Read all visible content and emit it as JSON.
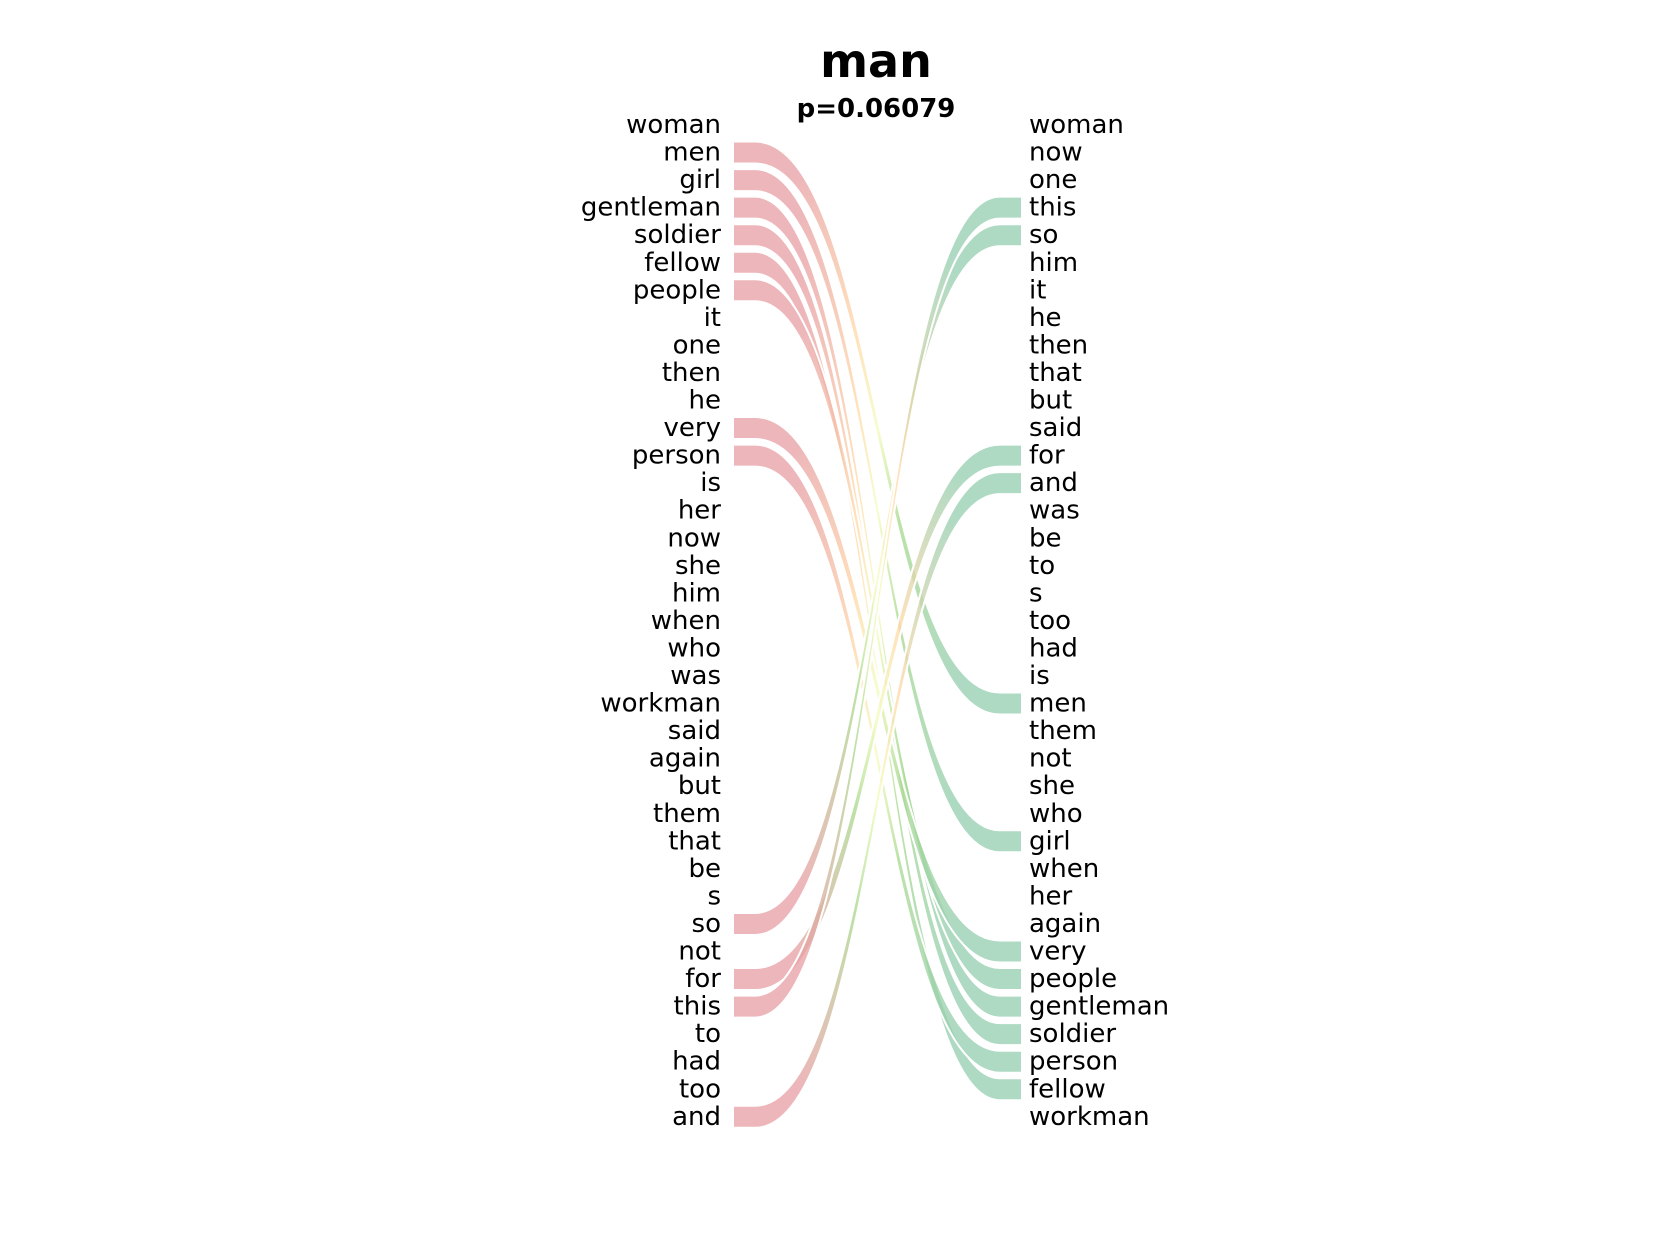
{
  "chart_data": {
    "type": "bump",
    "title": "man",
    "subtitle": "p=0.06079",
    "left_ranking": [
      "woman",
      "men",
      "girl",
      "gentleman",
      "soldier",
      "fellow",
      "people",
      "it",
      "one",
      "then",
      "he",
      "very",
      "person",
      "is",
      "her",
      "now",
      "she",
      "him",
      "when",
      "who",
      "was",
      "workman",
      "said",
      "again",
      "but",
      "them",
      "that",
      "be",
      "s",
      "so",
      "not",
      "for",
      "this",
      "to",
      "had",
      "too",
      "and"
    ],
    "right_ranking": [
      "woman",
      "now",
      "one",
      "this",
      "so",
      "him",
      "it",
      "he",
      "then",
      "that",
      "but",
      "said",
      "for",
      "and",
      "was",
      "be",
      "to",
      "s",
      "too",
      "had",
      "is",
      "men",
      "them",
      "not",
      "she",
      "who",
      "girl",
      "when",
      "her",
      "again",
      "very",
      "people",
      "gentleman",
      "soldier",
      "person",
      "fellow",
      "workman"
    ],
    "highlighted_words": [
      "men",
      "girl",
      "gentleman",
      "soldier",
      "fellow",
      "people",
      "very",
      "person",
      "so",
      "for",
      "this",
      "and"
    ],
    "colors": {
      "left_end": "#e8a2a6",
      "right_end": "#97cfb2",
      "mid_top": "#ffd9a8",
      "mid_center": "#f4fcc0",
      "mid_bottom": "#a9da8e"
    }
  }
}
